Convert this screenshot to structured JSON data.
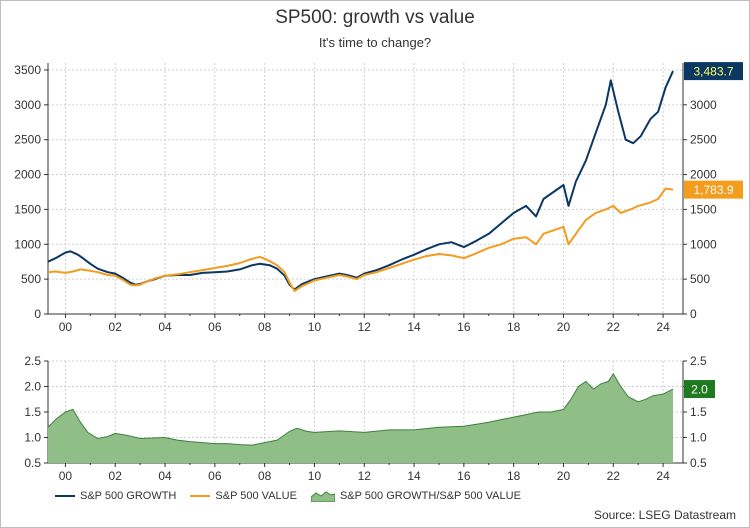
{
  "title": "SP500: growth vs value",
  "subtitle": "It's time to change?",
  "source": "Source: LSEG Datastream",
  "colors": {
    "growth": "#0b3763",
    "value": "#f39c1e",
    "ratio_fill": "#8fbf87",
    "ratio_line": "#3f7f3f",
    "ratio_badge": "#1f7a1f"
  },
  "chart_data": [
    {
      "type": "line",
      "x_tick_labels": [
        "00",
        "02",
        "04",
        "06",
        "08",
        "10",
        "12",
        "14",
        "16",
        "18",
        "20",
        "22",
        "24"
      ],
      "xlim": [
        1999.3,
        2024.8
      ],
      "ylim": [
        0,
        3600
      ],
      "y_ticks_left": [
        "0",
        "500",
        "1000",
        "1500",
        "2000",
        "2500",
        "3000",
        "3500"
      ],
      "y_ticks_right": [
        "0",
        "500",
        "1000",
        "1500",
        "2000",
        "2500",
        "3000"
      ],
      "grid": true,
      "last_value_labels": {
        "growth": "3,483.7",
        "value": "1,783.9"
      },
      "series": [
        {
          "name": "S&P 500 GROWTH",
          "x": [
            1999.3,
            1999.6,
            2000.0,
            2000.2,
            2000.5,
            2000.7,
            2001.0,
            2001.3,
            2001.7,
            2002.0,
            2002.3,
            2002.6,
            2002.8,
            2003.0,
            2003.3,
            2003.6,
            2004.0,
            2004.5,
            2005.0,
            2005.5,
            2006.0,
            2006.5,
            2007.0,
            2007.5,
            2007.8,
            2008.2,
            2008.5,
            2008.8,
            2009.0,
            2009.2,
            2009.5,
            2010.0,
            2010.5,
            2011.0,
            2011.3,
            2011.7,
            2012.0,
            2012.5,
            2013.0,
            2013.5,
            2014.0,
            2014.5,
            2015.0,
            2015.5,
            2016.0,
            2016.5,
            2017.0,
            2017.5,
            2018.0,
            2018.5,
            2018.9,
            2019.2,
            2019.6,
            2020.0,
            2020.2,
            2020.5,
            2020.9,
            2021.3,
            2021.7,
            2021.9,
            2022.2,
            2022.5,
            2022.8,
            2023.1,
            2023.5,
            2023.8,
            2024.1,
            2024.4
          ],
          "values": [
            750,
            800,
            880,
            900,
            850,
            800,
            720,
            650,
            600,
            580,
            520,
            450,
            420,
            430,
            470,
            500,
            550,
            560,
            560,
            590,
            600,
            610,
            640,
            700,
            720,
            700,
            650,
            550,
            420,
            350,
            430,
            500,
            540,
            580,
            560,
            520,
            580,
            630,
            700,
            780,
            850,
            930,
            1000,
            1030,
            960,
            1050,
            1150,
            1300,
            1450,
            1550,
            1400,
            1650,
            1750,
            1850,
            1550,
            1900,
            2200,
            2600,
            3000,
            3350,
            2900,
            2500,
            2450,
            2550,
            2800,
            2900,
            3250,
            3483.7
          ]
        },
        {
          "name": "S&P 500 VALUE",
          "x": [
            1999.3,
            1999.6,
            2000.0,
            2000.3,
            2000.6,
            2001.0,
            2001.3,
            2001.7,
            2002.0,
            2002.3,
            2002.6,
            2002.8,
            2003.0,
            2003.3,
            2003.6,
            2004.0,
            2004.5,
            2005.0,
            2005.5,
            2006.0,
            2006.5,
            2007.0,
            2007.4,
            2007.8,
            2008.2,
            2008.5,
            2008.8,
            2009.0,
            2009.2,
            2009.5,
            2010.0,
            2010.5,
            2011.0,
            2011.3,
            2011.7,
            2012.0,
            2012.5,
            2013.0,
            2013.5,
            2014.0,
            2014.5,
            2015.0,
            2015.5,
            2016.0,
            2016.5,
            2017.0,
            2017.5,
            2018.0,
            2018.5,
            2018.9,
            2019.2,
            2019.6,
            2020.0,
            2020.2,
            2020.5,
            2020.9,
            2021.3,
            2021.7,
            2022.0,
            2022.3,
            2022.7,
            2023.0,
            2023.5,
            2023.8,
            2024.1,
            2024.4
          ],
          "values": [
            600,
            610,
            590,
            610,
            640,
            620,
            600,
            560,
            550,
            490,
            420,
            410,
            420,
            470,
            510,
            550,
            570,
            600,
            630,
            660,
            690,
            730,
            780,
            820,
            760,
            700,
            600,
            450,
            330,
            400,
            480,
            520,
            560,
            540,
            500,
            560,
            600,
            660,
            720,
            780,
            830,
            860,
            840,
            800,
            870,
            950,
            1000,
            1080,
            1100,
            1000,
            1150,
            1200,
            1250,
            1000,
            1150,
            1350,
            1450,
            1500,
            1550,
            1450,
            1500,
            1550,
            1600,
            1650,
            1800,
            1783.9
          ]
        }
      ]
    },
    {
      "type": "area",
      "x_tick_labels": [
        "00",
        "02",
        "04",
        "06",
        "08",
        "10",
        "12",
        "14",
        "16",
        "18",
        "20",
        "22",
        "24"
      ],
      "xlim": [
        1999.3,
        2024.8
      ],
      "ylim": [
        0.5,
        2.5
      ],
      "y_ticks_left": [
        "0.5",
        "1.0",
        "1.5",
        "2.0",
        "2.5"
      ],
      "y_ticks_right": [
        "0.5",
        "1.0",
        "1.5",
        "2.0",
        "2.5"
      ],
      "grid": true,
      "last_value_label": "2.0",
      "series": [
        {
          "name": "S&P 500 GROWTH/S&P 500 VALUE",
          "x": [
            1999.3,
            1999.6,
            2000.0,
            2000.3,
            2000.6,
            2000.9,
            2001.3,
            2001.7,
            2002.0,
            2002.5,
            2003.0,
            2003.5,
            2004.0,
            2004.5,
            2005.0,
            2005.5,
            2006.0,
            2006.5,
            2007.0,
            2007.5,
            2008.0,
            2008.5,
            2009.0,
            2009.3,
            2009.7,
            2010.0,
            2011.0,
            2012.0,
            2013.0,
            2014.0,
            2015.0,
            2016.0,
            2017.0,
            2017.5,
            2018.0,
            2018.5,
            2019.0,
            2019.5,
            2020.0,
            2020.3,
            2020.6,
            2020.9,
            2021.2,
            2021.5,
            2021.8,
            2022.0,
            2022.3,
            2022.6,
            2023.0,
            2023.3,
            2023.6,
            2024.0,
            2024.4
          ],
          "values": [
            1.2,
            1.35,
            1.5,
            1.55,
            1.3,
            1.1,
            0.98,
            1.02,
            1.08,
            1.04,
            0.98,
            0.99,
            1.0,
            0.95,
            0.92,
            0.9,
            0.88,
            0.88,
            0.86,
            0.85,
            0.9,
            0.95,
            1.12,
            1.18,
            1.12,
            1.1,
            1.13,
            1.1,
            1.15,
            1.15,
            1.2,
            1.22,
            1.3,
            1.35,
            1.4,
            1.45,
            1.5,
            1.5,
            1.55,
            1.75,
            2.0,
            2.1,
            1.95,
            2.05,
            2.1,
            2.25,
            2.0,
            1.8,
            1.7,
            1.75,
            1.82,
            1.85,
            1.95
          ]
        }
      ]
    }
  ],
  "legend": [
    {
      "label": "S&P 500 GROWTH",
      "kind": "line",
      "color": "#0b3763"
    },
    {
      "label": "S&P 500 VALUE",
      "kind": "line",
      "color": "#f39c1e"
    },
    {
      "label": "S&P 500 GROWTH/S&P 500 VALUE",
      "kind": "area",
      "color": "#8fbf87"
    }
  ]
}
